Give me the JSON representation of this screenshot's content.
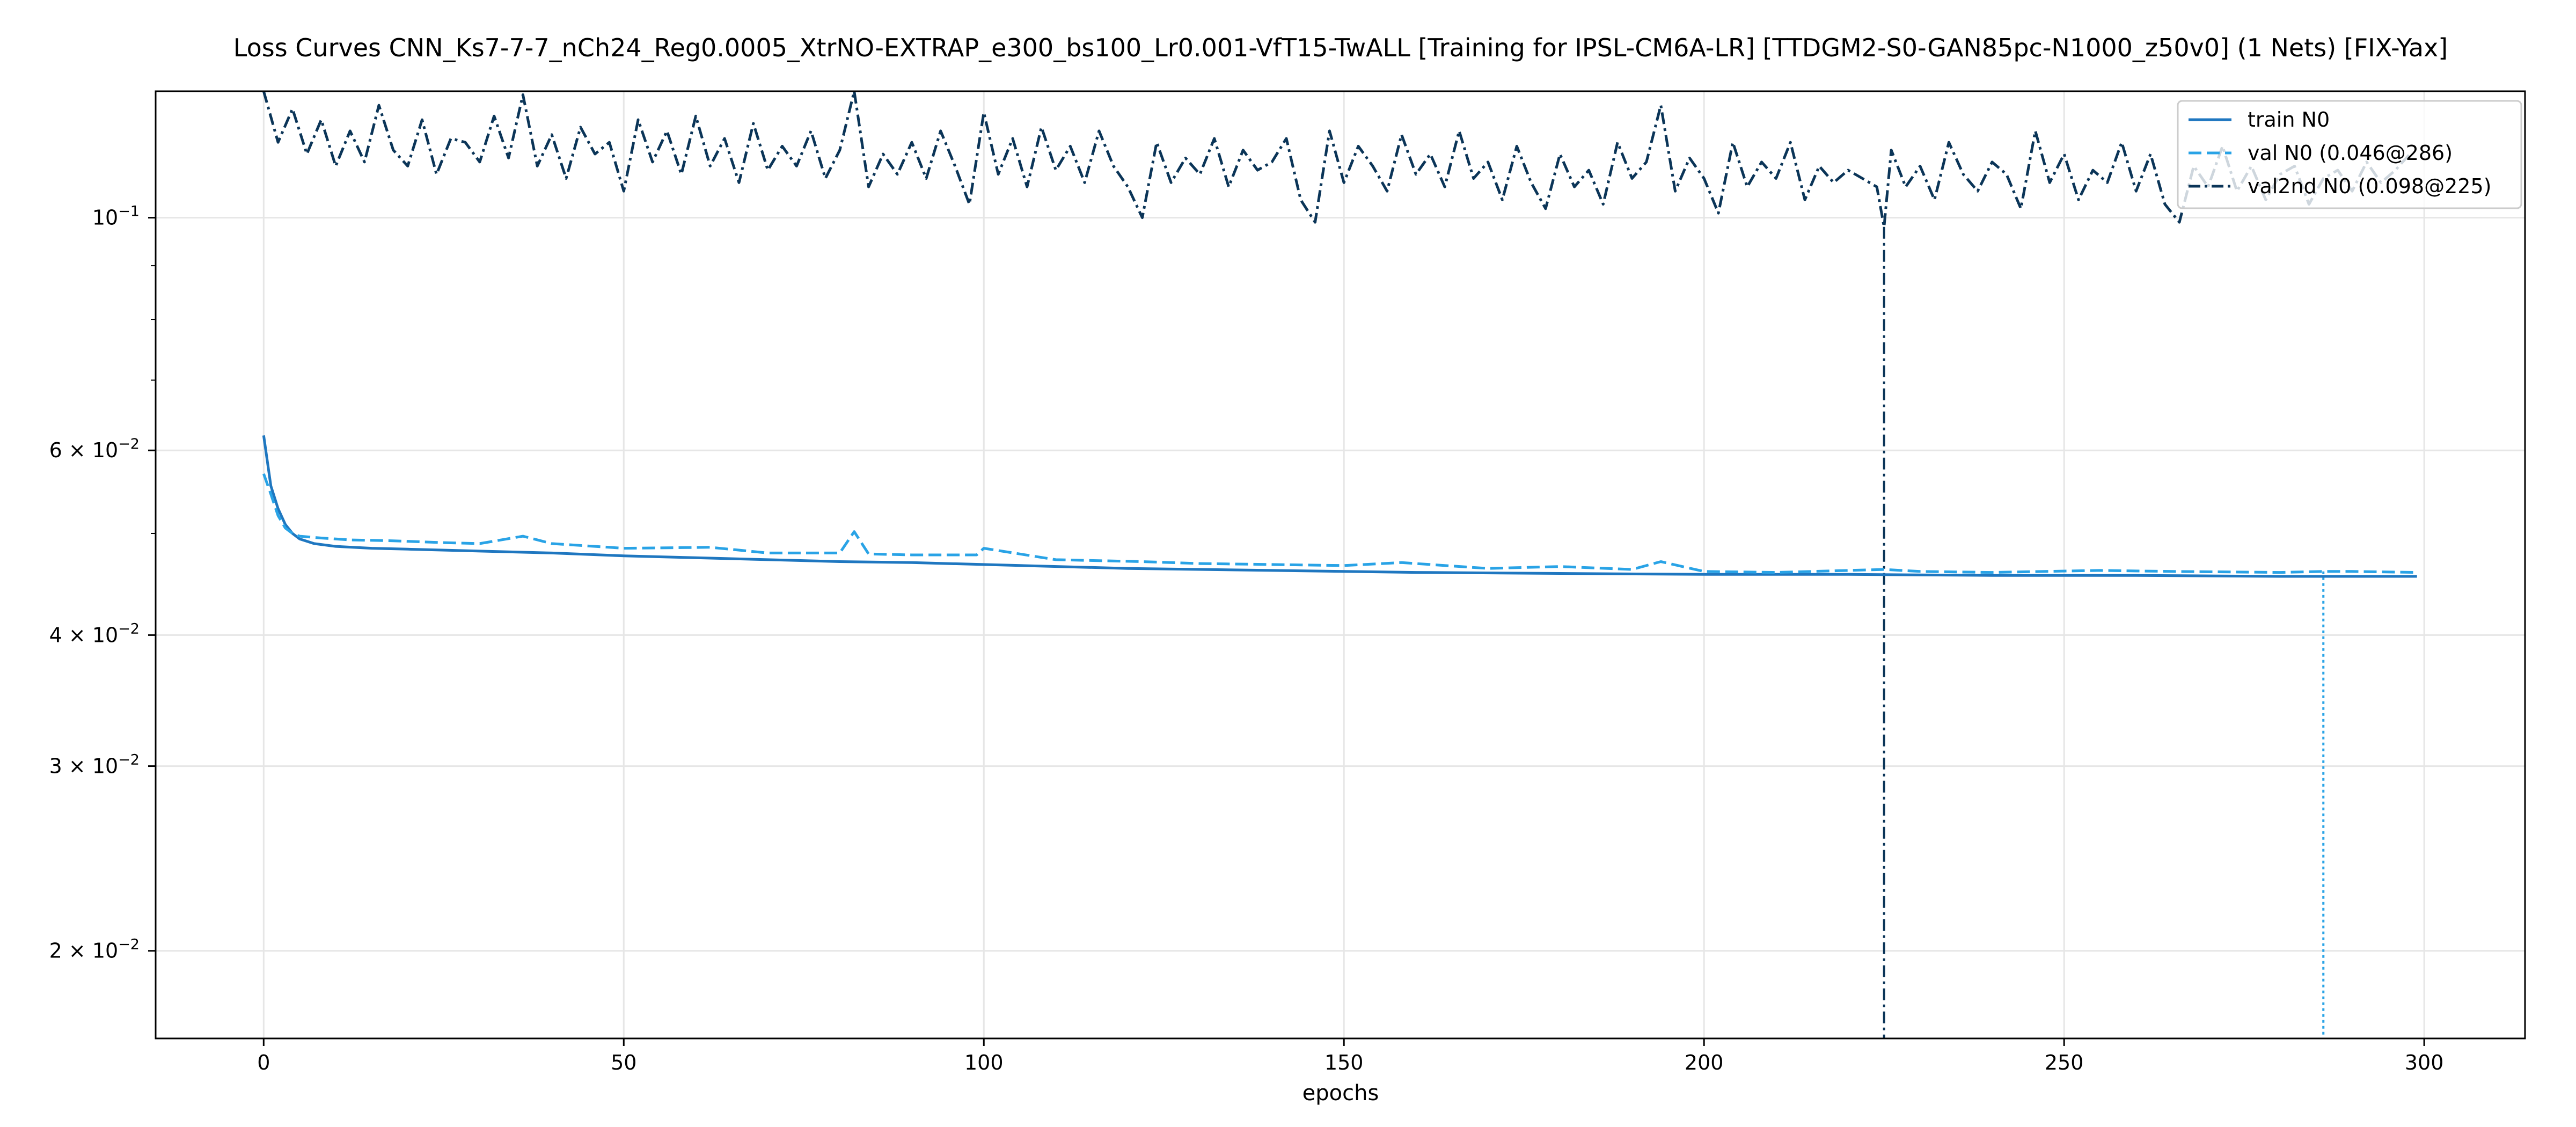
{
  "chart_data": {
    "type": "line",
    "title": "Loss Curves CNN_Ks7-7-7_nCh24_Reg0.0005_XtrNO-EXTRAP_e300_bs100_Lr0.001-VfT15-TwALL [Training for IPSL-CM6A-LR] [TTDGM2-S0-GAN85pc-N1000_z50v0] (1 Nets) [FIX-Yax]",
    "xlabel": "epochs",
    "ylabel": "",
    "xlim": [
      -15,
      314
    ],
    "ylim": [
      0.0165,
      0.132
    ],
    "yscale": "log",
    "grid": true,
    "legend_position": "top-right",
    "x_ticks": [
      0,
      50,
      100,
      150,
      200,
      250,
      300
    ],
    "x_tick_labels": [
      "0",
      "50",
      "100",
      "150",
      "200",
      "250",
      "300"
    ],
    "y_ticks": [
      0.02,
      0.03,
      0.04,
      0.06,
      0.1
    ],
    "y_tick_labels": [
      {
        "mantissa": "2 × 10",
        "exp": "−2"
      },
      {
        "mantissa": "3 × 10",
        "exp": "−2"
      },
      {
        "mantissa": "4 × 10",
        "exp": "−2"
      },
      {
        "mantissa": "6 × 10",
        "exp": "−2"
      },
      {
        "mantissa": "10",
        "exp": "−1"
      }
    ],
    "series": [
      {
        "name": "train N0",
        "color": "#1f77c0",
        "style": "solid",
        "x": [
          0,
          1,
          2,
          3,
          4,
          5,
          7,
          10,
          15,
          20,
          30,
          40,
          50,
          60,
          70,
          80,
          90,
          100,
          120,
          140,
          160,
          180,
          200,
          220,
          240,
          260,
          280,
          290,
          299
        ],
        "y": [
          0.062,
          0.0555,
          0.0528,
          0.051,
          0.05,
          0.0494,
          0.0489,
          0.0486,
          0.0484,
          0.0483,
          0.0481,
          0.0479,
          0.0476,
          0.0474,
          0.0472,
          0.047,
          0.0469,
          0.0467,
          0.0463,
          0.0461,
          0.0459,
          0.0458,
          0.0457,
          0.0457,
          0.0456,
          0.0456,
          0.0455,
          0.0455,
          0.0455
        ]
      },
      {
        "name": "val N0 (0.046@286)",
        "color": "#29a3e6",
        "style": "dashed",
        "x": [
          0,
          1,
          2,
          3,
          4,
          5,
          8,
          12,
          18,
          25,
          30,
          36,
          40,
          50,
          62,
          70,
          80,
          82,
          84,
          90,
          99,
          100,
          110,
          122,
          130,
          140,
          150,
          158,
          170,
          180,
          190,
          194,
          200,
          210,
          225,
          230,
          240,
          255,
          265,
          280,
          286,
          290,
          299
        ],
        "y": [
          0.057,
          0.0545,
          0.052,
          0.0506,
          0.05,
          0.0497,
          0.0495,
          0.0493,
          0.0492,
          0.049,
          0.0489,
          0.0497,
          0.0489,
          0.0484,
          0.0485,
          0.0479,
          0.0479,
          0.0502,
          0.0478,
          0.0477,
          0.0477,
          0.0484,
          0.0472,
          0.047,
          0.0468,
          0.0467,
          0.0466,
          0.0469,
          0.0463,
          0.0465,
          0.0462,
          0.047,
          0.046,
          0.0459,
          0.0462,
          0.046,
          0.0459,
          0.0461,
          0.046,
          0.0459,
          0.046,
          0.046,
          0.0459
        ]
      },
      {
        "name": "val2nd N0 (0.098@225)",
        "color": "#0b3558",
        "style": "dashdot",
        "x": [
          0,
          2,
          4,
          6,
          8,
          10,
          12,
          14,
          16,
          18,
          20,
          22,
          24,
          26,
          28,
          30,
          32,
          34,
          36,
          38,
          40,
          42,
          44,
          46,
          48,
          50,
          52,
          54,
          56,
          58,
          60,
          62,
          64,
          66,
          68,
          70,
          72,
          74,
          76,
          78,
          80,
          82,
          84,
          86,
          88,
          90,
          92,
          94,
          96,
          98,
          100,
          102,
          104,
          106,
          108,
          110,
          112,
          114,
          116,
          118,
          120,
          122,
          124,
          126,
          128,
          130,
          132,
          134,
          136,
          138,
          140,
          142,
          144,
          146,
          148,
          150,
          152,
          154,
          156,
          158,
          160,
          162,
          164,
          166,
          168,
          170,
          172,
          174,
          176,
          178,
          180,
          182,
          184,
          186,
          188,
          190,
          192,
          194,
          196,
          198,
          200,
          202,
          204,
          206,
          208,
          210,
          212,
          214,
          216,
          218,
          220,
          222,
          224,
          225,
          226,
          228,
          230,
          232,
          234,
          236,
          238,
          240,
          242,
          244,
          246,
          248,
          250,
          252,
          254,
          256,
          258,
          260,
          262,
          264,
          266,
          268,
          270,
          272,
          274,
          276,
          278,
          280,
          282,
          284,
          286,
          288,
          290,
          292,
          294,
          296,
          298
        ],
        "y": [
          0.132,
          0.118,
          0.127,
          0.115,
          0.124,
          0.112,
          0.121,
          0.113,
          0.128,
          0.116,
          0.112,
          0.124,
          0.11,
          0.119,
          0.118,
          0.113,
          0.125,
          0.114,
          0.131,
          0.112,
          0.12,
          0.109,
          0.122,
          0.115,
          0.118,
          0.106,
          0.124,
          0.113,
          0.121,
          0.11,
          0.125,
          0.112,
          0.119,
          0.108,
          0.123,
          0.111,
          0.117,
          0.112,
          0.121,
          0.109,
          0.116,
          0.132,
          0.107,
          0.115,
          0.11,
          0.118,
          0.109,
          0.121,
          0.112,
          0.103,
          0.126,
          0.11,
          0.119,
          0.107,
          0.122,
          0.111,
          0.117,
          0.108,
          0.121,
          0.112,
          0.107,
          0.1,
          0.118,
          0.108,
          0.114,
          0.11,
          0.119,
          0.107,
          0.116,
          0.111,
          0.113,
          0.119,
          0.104,
          0.099,
          0.121,
          0.108,
          0.117,
          0.112,
          0.106,
          0.12,
          0.11,
          0.115,
          0.107,
          0.121,
          0.109,
          0.113,
          0.104,
          0.117,
          0.108,
          0.102,
          0.115,
          0.107,
          0.111,
          0.103,
          0.118,
          0.109,
          0.113,
          0.128,
          0.106,
          0.114,
          0.109,
          0.101,
          0.118,
          0.107,
          0.113,
          0.109,
          0.118,
          0.104,
          0.112,
          0.108,
          0.111,
          0.109,
          0.107,
          0.098,
          0.116,
          0.107,
          0.112,
          0.104,
          0.118,
          0.11,
          0.106,
          0.113,
          0.11,
          0.102,
          0.121,
          0.108,
          0.115,
          0.104,
          0.111,
          0.108,
          0.118,
          0.106,
          0.115,
          0.103,
          0.099,
          0.112,
          0.107,
          0.117,
          0.106,
          0.112,
          0.104,
          0.11,
          0.112,
          0.103,
          0.109,
          0.111,
          0.106,
          0.113,
          0.108,
          0.111,
          0.115
        ]
      }
    ],
    "markers": [
      {
        "series": "val N0 (0.046@286)",
        "x": 286,
        "y": 0.046,
        "color": "#29a3e6",
        "style": "dotted"
      },
      {
        "series": "val2nd N0 (0.098@225)",
        "x": 225,
        "y": 0.098,
        "color": "#0b3558",
        "style": "dashdot"
      }
    ]
  }
}
